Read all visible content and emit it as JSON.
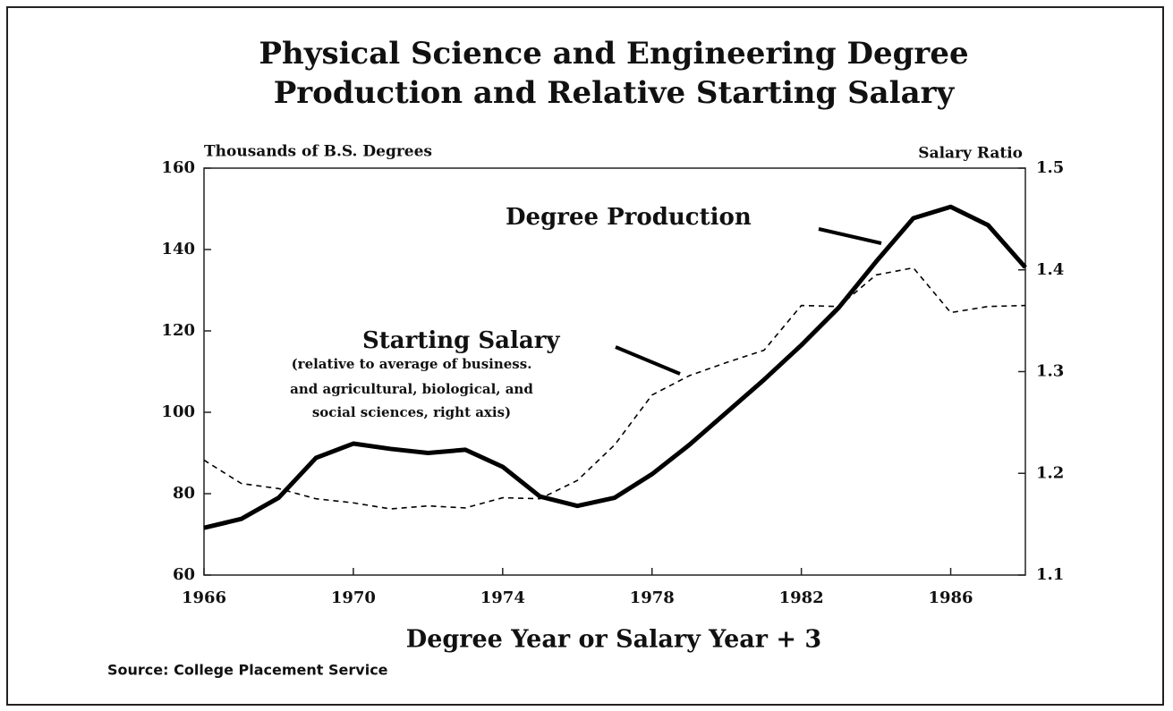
{
  "chart_data": {
    "type": "line",
    "title": [
      "Physical Science and Engineering Degree",
      "Production and Relative Starting Salary"
    ],
    "y_axis_label": "Thousands of B.S. Degrees",
    "y2_axis_label": "Salary Ratio",
    "x_axis_label": "Degree Year or Salary Year + 3",
    "source": "Source:  College Placement Service",
    "x": [
      1966,
      1967,
      1968,
      1969,
      1970,
      1971,
      1972,
      1973,
      1974,
      1975,
      1976,
      1977,
      1978,
      1979,
      1980,
      1981,
      1982,
      1983,
      1984,
      1985,
      1986,
      1987,
      1988
    ],
    "xlim": [
      1966,
      1988
    ],
    "xticks": [
      1966,
      1970,
      1974,
      1978,
      1982,
      1986
    ],
    "ylim": [
      60,
      160
    ],
    "yticks": [
      60,
      80,
      100,
      120,
      140,
      160
    ],
    "y2lim": [
      1.1,
      1.5
    ],
    "y2ticks": [
      1.1,
      1.2,
      1.3,
      1.4,
      1.5
    ],
    "series": [
      {
        "name": "Degree Production",
        "color": "#000000",
        "style": "solid",
        "values": [
          71.6,
          73.8,
          79,
          88.8,
          92.3,
          91,
          90,
          90.8,
          86.6,
          79.3,
          77,
          79,
          84.8,
          92,
          100,
          108,
          116.5,
          125.7,
          137,
          147.7,
          150.5,
          146,
          135.6
        ]
      },
      {
        "name": "Starting Salary",
        "color": "#000000",
        "style": "dashed",
        "axis": "y2",
        "note": [
          "(relative to average of business.",
          "and agricultural, biological, and",
          "social sciences, right axis)"
        ],
        "values": [
          1.213,
          1.19,
          1.185,
          1.175,
          1.171,
          1.165,
          1.168,
          1.166,
          1.176,
          1.175,
          1.193,
          1.228,
          1.277,
          1.296,
          1.309,
          1.321,
          1.365,
          1.364,
          1.395,
          1.402,
          1.358,
          1.364,
          1.365
        ]
      }
    ]
  }
}
